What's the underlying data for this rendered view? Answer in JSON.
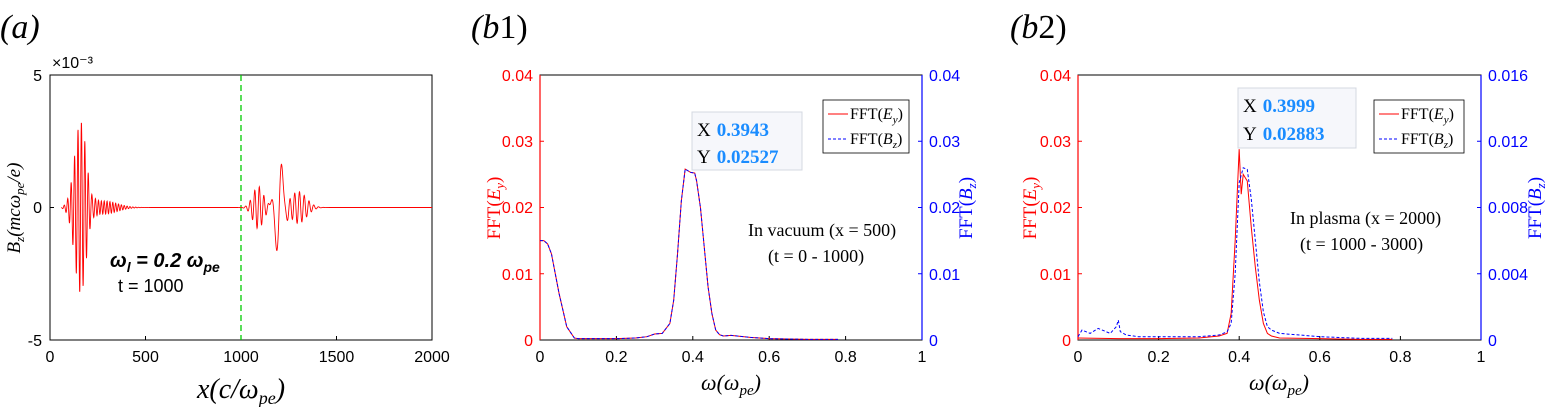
{
  "chart_data": [
    {
      "panel_label": "(a)",
      "type": "line",
      "xlabel": "x(c/ω_pe)",
      "ylabel": "B_z(mcω_pe/e)",
      "y_exponent": "×10⁻³",
      "xlim": [
        0,
        2000
      ],
      "ylim": [
        -5,
        5
      ],
      "xticks": [
        "0",
        "500",
        "1000",
        "1500",
        "2000"
      ],
      "yticks": [
        "5",
        "0",
        "-5"
      ],
      "vline_x": 1000,
      "annotations": [
        "ω_l = 0.2 ω_pe",
        "t = 1000"
      ],
      "series": [
        {
          "color": "#ff0000",
          "packets": [
            {
              "center": 160,
              "amplitude": 3.2,
              "width": 45,
              "wavelength": 18
            },
            {
              "center": 280,
              "amplitude": 0.25,
              "width": 100,
              "wavelength": 15
            },
            {
              "center": 1090,
              "amplitude": 0.8,
              "width": 40,
              "wavelength": 24
            },
            {
              "center": 1200,
              "amplitude": 2.0,
              "width": 30,
              "wavelength": 60
            },
            {
              "center": 1300,
              "amplitude": 0.6,
              "width": 60,
              "wavelength": 25
            }
          ]
        }
      ]
    },
    {
      "panel_label": "(b1)",
      "type": "line",
      "xlabel": "ω(ω_pe)",
      "ylabel_left": "FFT(E_y)",
      "ylabel_right": "FFT(B_z)",
      "xlim": [
        0,
        1
      ],
      "ylim_left": [
        0,
        0.04
      ],
      "ylim_right": [
        0,
        0.04
      ],
      "xticks": [
        "0",
        "0.2",
        "0.4",
        "0.6",
        "0.8",
        "1"
      ],
      "yticks_left": [
        "0",
        "0.01",
        "0.02",
        "0.03",
        "0.04"
      ],
      "yticks_right": [
        "0",
        "0.01",
        "0.02",
        "0.03",
        "0.04"
      ],
      "legend": [
        "FFT(E_y)",
        "FFT(B_z)"
      ],
      "datatip": {
        "x_label": "X",
        "x_value": "0.3943",
        "y_label": "Y",
        "y_value": "0.02527"
      },
      "annotations": [
        "In vacuum (x = 500)",
        "(t = 0 - 1000)"
      ],
      "series": [
        {
          "name": "FFT(E_y)",
          "color": "#ff0000",
          "axis": "left",
          "x": [
            0,
            0.01,
            0.02,
            0.03,
            0.05,
            0.07,
            0.09,
            0.1,
            0.15,
            0.2,
            0.25,
            0.28,
            0.3,
            0.32,
            0.34,
            0.35,
            0.36,
            0.37,
            0.38,
            0.3943,
            0.405,
            0.41,
            0.42,
            0.43,
            0.44,
            0.45,
            0.46,
            0.47,
            0.48,
            0.5,
            0.55,
            0.6,
            0.7,
            0.78
          ],
          "y": [
            0.015,
            0.015,
            0.0145,
            0.013,
            0.007,
            0.002,
            0.0003,
            0.0002,
            0.0002,
            0.0002,
            0.0003,
            0.0005,
            0.0009,
            0.001,
            0.0025,
            0.006,
            0.013,
            0.021,
            0.0258,
            0.0253,
            0.0252,
            0.024,
            0.02,
            0.014,
            0.008,
            0.004,
            0.0015,
            0.0008,
            0.0006,
            0.0007,
            0.0004,
            0.0002,
            0.0001,
            0.0001
          ]
        },
        {
          "name": "FFT(B_z)",
          "color": "#0000ff",
          "axis": "right",
          "dashed": true,
          "x": [
            0,
            0.01,
            0.02,
            0.03,
            0.05,
            0.07,
            0.09,
            0.1,
            0.15,
            0.2,
            0.25,
            0.28,
            0.3,
            0.32,
            0.34,
            0.35,
            0.36,
            0.37,
            0.38,
            0.3943,
            0.405,
            0.41,
            0.42,
            0.43,
            0.44,
            0.45,
            0.46,
            0.47,
            0.48,
            0.5,
            0.55,
            0.6,
            0.7,
            0.78
          ],
          "y": [
            0.015,
            0.015,
            0.0145,
            0.013,
            0.007,
            0.002,
            0.0003,
            0.0002,
            0.0002,
            0.0002,
            0.0003,
            0.0005,
            0.0009,
            0.001,
            0.0025,
            0.006,
            0.013,
            0.021,
            0.0258,
            0.0253,
            0.0252,
            0.024,
            0.02,
            0.014,
            0.008,
            0.004,
            0.0015,
            0.0008,
            0.0006,
            0.0007,
            0.0004,
            0.0002,
            0.0001,
            0.0001
          ]
        }
      ]
    },
    {
      "panel_label": "(b2)",
      "type": "line",
      "xlabel": "ω(ω_pe)",
      "ylabel_left": "FFT(E_y)",
      "ylabel_right": "FFT(B_z)",
      "xlim": [
        0,
        1
      ],
      "ylim_left": [
        0,
        0.04
      ],
      "ylim_right": [
        0,
        0.016
      ],
      "xticks": [
        "0",
        "0.2",
        "0.4",
        "0.6",
        "0.8",
        "1"
      ],
      "yticks_left": [
        "0",
        "0.01",
        "0.02",
        "0.03",
        "0.04"
      ],
      "yticks_right": [
        "0",
        "0.004",
        "0.008",
        "0.012",
        "0.016"
      ],
      "legend": [
        "FFT(E_y)",
        "FFT(B_z)"
      ],
      "datatip": {
        "x_label": "X",
        "x_value": "0.3999",
        "y_label": "Y",
        "y_value": "0.02883"
      },
      "annotations": [
        "In plasma (x = 2000)",
        "(t = 1000 - 3000)"
      ],
      "series": [
        {
          "name": "FFT(E_y)",
          "color": "#ff0000",
          "axis": "left",
          "x": [
            0,
            0.1,
            0.2,
            0.3,
            0.35,
            0.37,
            0.38,
            0.39,
            0.3999,
            0.405,
            0.41,
            0.42,
            0.43,
            0.44,
            0.45,
            0.46,
            0.47,
            0.48,
            0.5,
            0.6,
            0.7,
            0.78
          ],
          "y": [
            0.0003,
            0.0002,
            0.0002,
            0.0003,
            0.0006,
            0.001,
            0.004,
            0.015,
            0.0288,
            0.022,
            0.025,
            0.024,
            0.017,
            0.011,
            0.006,
            0.0025,
            0.001,
            0.0006,
            0.0003,
            0.0002,
            0.0001,
            0.0001
          ]
        },
        {
          "name": "FFT(B_z)",
          "color": "#0000ff",
          "axis": "right",
          "dashed": true,
          "x": [
            0,
            0.01,
            0.03,
            0.05,
            0.08,
            0.095,
            0.1,
            0.105,
            0.12,
            0.15,
            0.2,
            0.3,
            0.35,
            0.37,
            0.38,
            0.39,
            0.4,
            0.41,
            0.42,
            0.43,
            0.44,
            0.45,
            0.46,
            0.47,
            0.48,
            0.5,
            0.55,
            0.6,
            0.7,
            0.78
          ],
          "y": [
            0.0002,
            0.0006,
            0.0004,
            0.0007,
            0.0004,
            0.0008,
            0.0012,
            0.0005,
            0.0003,
            0.0002,
            0.0002,
            0.0002,
            0.0003,
            0.0005,
            0.001,
            0.004,
            0.0095,
            0.0104,
            0.0103,
            0.0085,
            0.006,
            0.0035,
            0.0017,
            0.0008,
            0.0006,
            0.0004,
            0.0003,
            0.0002,
            0.0001,
            0.0001
          ]
        }
      ]
    }
  ]
}
